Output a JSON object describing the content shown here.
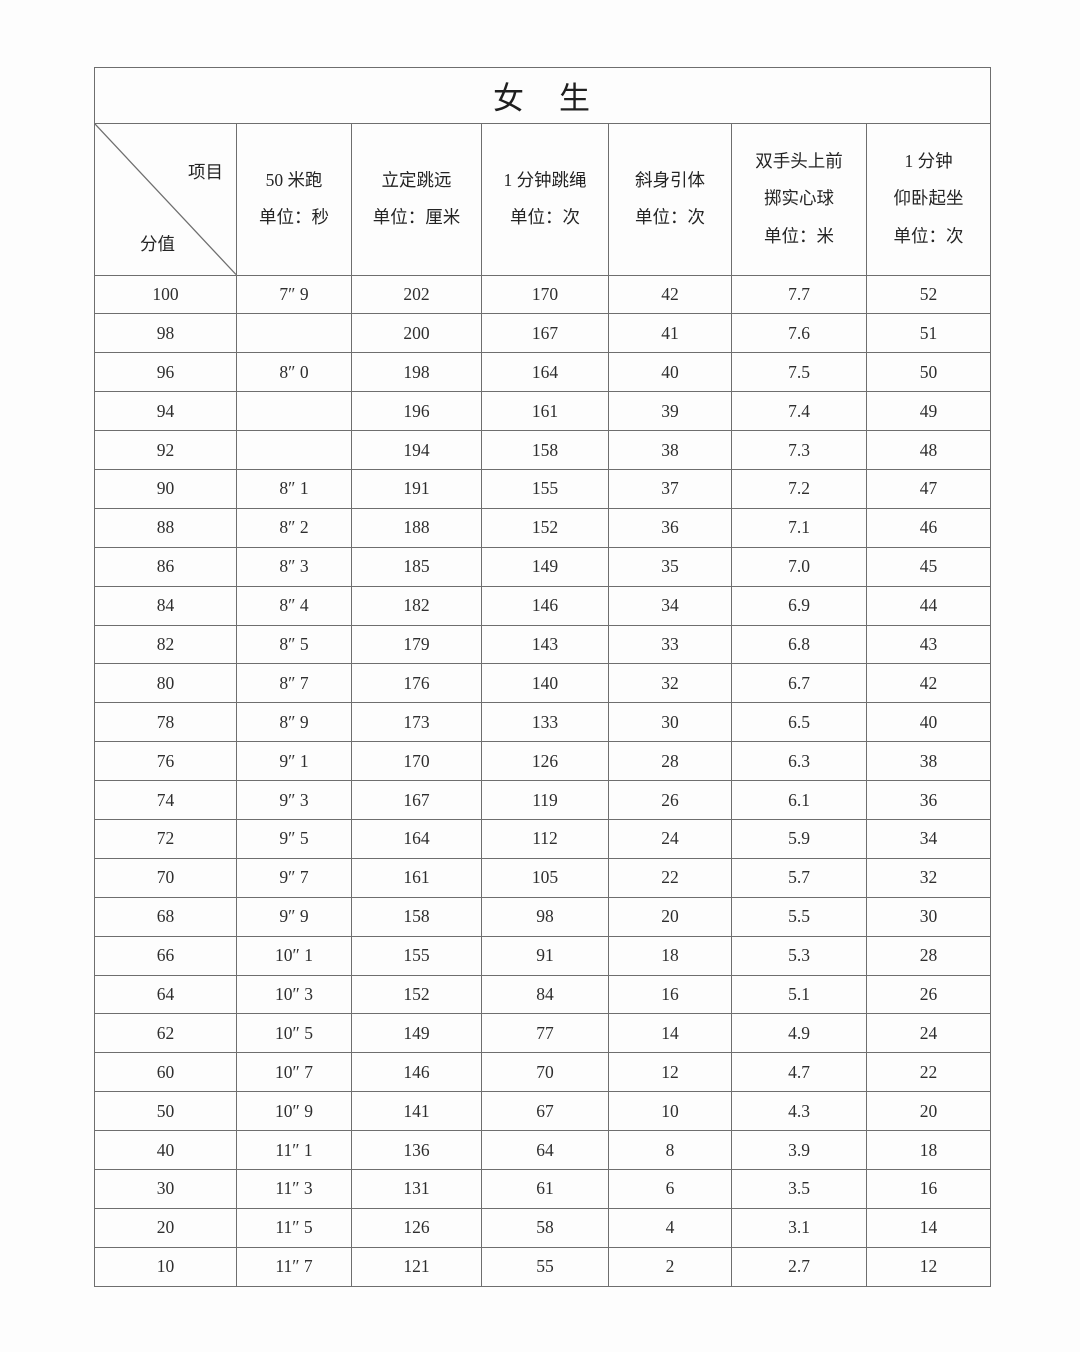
{
  "table": {
    "title": "女　生",
    "corner": {
      "top_right": "项目",
      "bottom_left": "分值"
    },
    "columns": [
      {
        "name": "run-50m",
        "label": "50 米跑\n单位：秒"
      },
      {
        "name": "standing-long-jump",
        "label": "立定跳远\n单位：厘米"
      },
      {
        "name": "rope-skipping-1min",
        "label": "1 分钟跳绳\n单位：次"
      },
      {
        "name": "incline-pull-up",
        "label": "斜身引体\n单位：次"
      },
      {
        "name": "medicine-ball-throw",
        "label": "双手头上前\n掷实心球\n单位：米"
      },
      {
        "name": "sit-up-1min",
        "label": "1 分钟\n仰卧起坐\n单位：次"
      }
    ],
    "rows": [
      [
        "100",
        "7″ 9",
        "202",
        "170",
        "42",
        "7.7",
        "52"
      ],
      [
        "98",
        "",
        "200",
        "167",
        "41",
        "7.6",
        "51"
      ],
      [
        "96",
        "8″ 0",
        "198",
        "164",
        "40",
        "7.5",
        "50"
      ],
      [
        "94",
        "",
        "196",
        "161",
        "39",
        "7.4",
        "49"
      ],
      [
        "92",
        "",
        "194",
        "158",
        "38",
        "7.3",
        "48"
      ],
      [
        "90",
        "8″ 1",
        "191",
        "155",
        "37",
        "7.2",
        "47"
      ],
      [
        "88",
        "8″ 2",
        "188",
        "152",
        "36",
        "7.1",
        "46"
      ],
      [
        "86",
        "8″ 3",
        "185",
        "149",
        "35",
        "7.0",
        "45"
      ],
      [
        "84",
        "8″ 4",
        "182",
        "146",
        "34",
        "6.9",
        "44"
      ],
      [
        "82",
        "8″ 5",
        "179",
        "143",
        "33",
        "6.8",
        "43"
      ],
      [
        "80",
        "8″ 7",
        "176",
        "140",
        "32",
        "6.7",
        "42"
      ],
      [
        "78",
        "8″ 9",
        "173",
        "133",
        "30",
        "6.5",
        "40"
      ],
      [
        "76",
        "9″ 1",
        "170",
        "126",
        "28",
        "6.3",
        "38"
      ],
      [
        "74",
        "9″ 3",
        "167",
        "119",
        "26",
        "6.1",
        "36"
      ],
      [
        "72",
        "9″ 5",
        "164",
        "112",
        "24",
        "5.9",
        "34"
      ],
      [
        "70",
        "9″ 7",
        "161",
        "105",
        "22",
        "5.7",
        "32"
      ],
      [
        "68",
        "9″ 9",
        "158",
        "98",
        "20",
        "5.5",
        "30"
      ],
      [
        "66",
        "10″ 1",
        "155",
        "91",
        "18",
        "5.3",
        "28"
      ],
      [
        "64",
        "10″ 3",
        "152",
        "84",
        "16",
        "5.1",
        "26"
      ],
      [
        "62",
        "10″ 5",
        "149",
        "77",
        "14",
        "4.9",
        "24"
      ],
      [
        "60",
        "10″ 7",
        "146",
        "70",
        "12",
        "4.7",
        "22"
      ],
      [
        "50",
        "10″ 9",
        "141",
        "67",
        "10",
        "4.3",
        "20"
      ],
      [
        "40",
        "11″ 1",
        "136",
        "64",
        "8",
        "3.9",
        "18"
      ],
      [
        "30",
        "11″ 3",
        "131",
        "61",
        "6",
        "3.5",
        "16"
      ],
      [
        "20",
        "11″ 5",
        "126",
        "58",
        "4",
        "3.1",
        "14"
      ],
      [
        "10",
        "11″ 7",
        "121",
        "55",
        "2",
        "2.7",
        "12"
      ]
    ],
    "cell_names": [
      "score",
      "run-50m",
      "standing-long-jump",
      "rope-skipping",
      "incline-pull-up",
      "medicine-ball",
      "sit-up"
    ],
    "border_color": "#6e6e6e"
  }
}
